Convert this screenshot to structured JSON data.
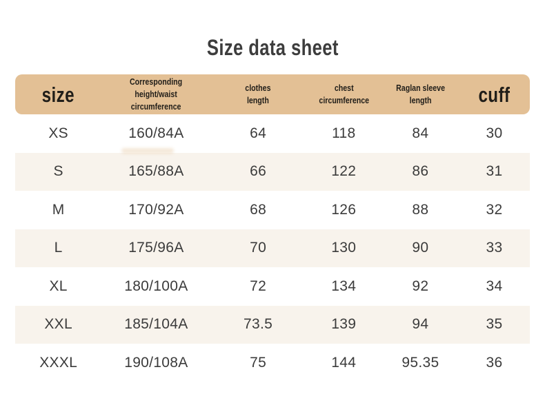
{
  "title": "Size data sheet",
  "colors": {
    "header_bg": "#e3c095",
    "row_alt_bg": "#f8f3ec",
    "page_bg": "#ffffff",
    "title_color": "#3d3d3d",
    "header_text": "#211e19",
    "value_color": "#3b3b3b"
  },
  "table": {
    "columns": [
      {
        "label": "size"
      },
      {
        "label": "Corresponding height/waist\ncircumference"
      },
      {
        "label": "clothes\nlength"
      },
      {
        "label": "chest\ncircumference"
      },
      {
        "label": "Raglan sleeve length"
      },
      {
        "label": "cuff"
      }
    ],
    "rows": [
      {
        "cells": [
          "XS",
          "160/84A",
          "64",
          "118",
          "84",
          "30"
        ]
      },
      {
        "cells": [
          "S",
          "165/88A",
          "66",
          "122",
          "86",
          "31"
        ]
      },
      {
        "cells": [
          "M",
          "170/92A",
          "68",
          "126",
          "88",
          "32"
        ]
      },
      {
        "cells": [
          "L",
          "175/96A",
          "70",
          "130",
          "90",
          "33"
        ]
      },
      {
        "cells": [
          "XL",
          "180/100A",
          "72",
          "134",
          "92",
          "34"
        ]
      },
      {
        "cells": [
          "XXL",
          "185/104A",
          "73.5",
          "139",
          "94",
          "35"
        ]
      },
      {
        "cells": [
          "XXXL",
          "190/108A",
          "75",
          "144",
          "95.35",
          "36"
        ]
      }
    ]
  }
}
